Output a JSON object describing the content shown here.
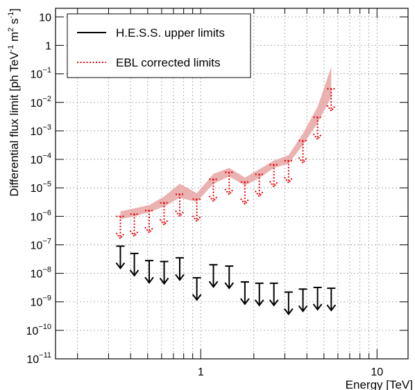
{
  "chart_data": {
    "type": "scatter",
    "xlabel": "Energy [TeV]",
    "ylabel": "Differential flux limit [ph TeV^-1 m^2 s^-1]",
    "ylabel_parts": {
      "pre": "Differential flux limit [ph TeV",
      "exp1": "-1",
      "mid": " m",
      "exp2": "2",
      "mid2": " s",
      "exp3": "-1",
      "post": "]"
    },
    "x_scale": "log",
    "y_scale": "log",
    "xlim": [
      0.15,
      15
    ],
    "ylim": [
      1e-11,
      20
    ],
    "grid": true,
    "x_tick_labels": [
      {
        "value": 1,
        "label": "1"
      },
      {
        "value": 10,
        "label": "10"
      }
    ],
    "y_tick_labels": [
      {
        "value": 10,
        "base": "10",
        "exp": ""
      },
      {
        "value": 1,
        "base": "1",
        "exp": ""
      },
      {
        "value": 0.1,
        "base": "10",
        "exp": "−1"
      },
      {
        "value": 0.01,
        "base": "10",
        "exp": "−2"
      },
      {
        "value": 0.001,
        "base": "10",
        "exp": "−3"
      },
      {
        "value": 0.0001,
        "base": "10",
        "exp": "−4"
      },
      {
        "value": 1e-05,
        "base": "10",
        "exp": "−5"
      },
      {
        "value": 1e-06,
        "base": "10",
        "exp": "−6"
      },
      {
        "value": 1e-07,
        "base": "10",
        "exp": "−7"
      },
      {
        "value": 1e-08,
        "base": "10",
        "exp": "−8"
      },
      {
        "value": 1e-09,
        "base": "10",
        "exp": "−9"
      },
      {
        "value": 1e-10,
        "base": "10",
        "exp": "−10"
      },
      {
        "value": 1e-11,
        "base": "10",
        "exp": "−11"
      }
    ],
    "legend_position": "top-left",
    "series": [
      {
        "name": "H.E.S.S. upper limits",
        "style": "solid",
        "color": "#000000",
        "x": [
          0.35,
          0.42,
          0.51,
          0.62,
          0.76,
          0.95,
          1.18,
          1.45,
          1.78,
          2.15,
          2.6,
          3.15,
          3.8,
          4.6,
          5.5
        ],
        "y": [
          9e-08,
          5e-08,
          2.8e-08,
          2.6e-08,
          3.5e-08,
          7e-09,
          2e-08,
          1.8e-08,
          5e-09,
          4.5e-09,
          4.5e-09,
          2.2e-09,
          2.8e-09,
          3.2e-09,
          3e-09
        ]
      },
      {
        "name": "EBL corrected limits",
        "style": "dotted",
        "color": "#e8000b",
        "x": [
          0.35,
          0.42,
          0.51,
          0.62,
          0.76,
          0.95,
          1.18,
          1.45,
          1.78,
          2.15,
          2.6,
          3.15,
          3.8,
          4.6,
          5.5
        ],
        "y": [
          1e-06,
          1.2e-06,
          1.6e-06,
          3e-06,
          6e-06,
          4e-06,
          2e-05,
          3.5e-05,
          1.6e-05,
          3e-05,
          6.5e-05,
          9e-05,
          0.00045,
          0.003,
          0.03
        ]
      }
    ],
    "band": {
      "color": "#e8a4a4",
      "x": [
        0.35,
        0.42,
        0.51,
        0.62,
        0.76,
        0.95,
        1.18,
        1.45,
        1.78,
        2.15,
        2.6,
        3.15,
        3.8,
        4.6,
        5.5
      ],
      "upper": [
        1.5e-06,
        1.9e-06,
        2.5e-06,
        5e-06,
        1.4e-05,
        6.5e-06,
        3.1e-05,
        5e-05,
        2.3e-05,
        4.5e-05,
        9e-05,
        0.00014,
        0.0008,
        0.007,
        0.18
      ],
      "lower": [
        8e-07,
        1e-06,
        1.4e-06,
        2.2e-06,
        4.5e-06,
        3.2e-06,
        1.4e-05,
        2.5e-05,
        1.2e-05,
        2.2e-05,
        5e-05,
        7e-05,
        0.00032,
        0.0019,
        0.015
      ]
    }
  }
}
